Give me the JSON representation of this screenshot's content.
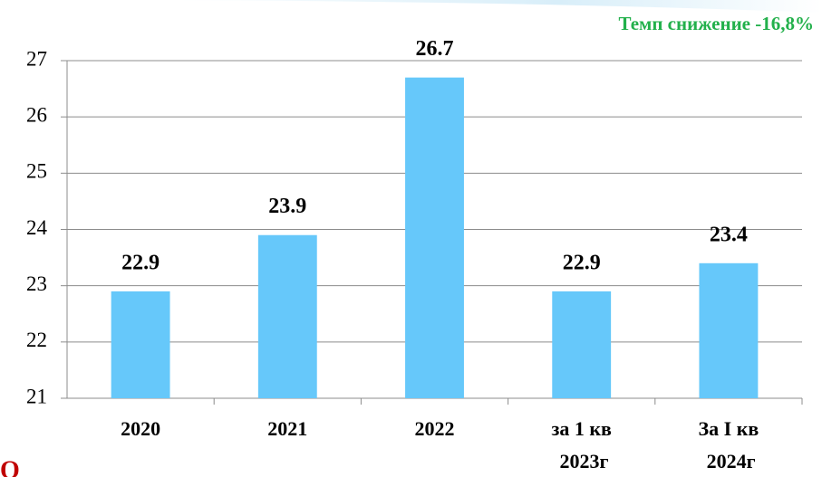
{
  "chart_data": {
    "type": "bar",
    "annotation": "Темп снижение -16,8%",
    "footer_text": "О",
    "categories": [
      "2020",
      "2021",
      "2022",
      "за 1 кв 2023г",
      "За I кв 2024г"
    ],
    "values": [
      22.9,
      23.9,
      26.7,
      22.9,
      23.4
    ],
    "color": "#66c8fa",
    "ylim": [
      21,
      27
    ],
    "yticks": [
      21,
      22,
      23,
      24,
      25,
      26,
      27
    ],
    "grid": true
  }
}
